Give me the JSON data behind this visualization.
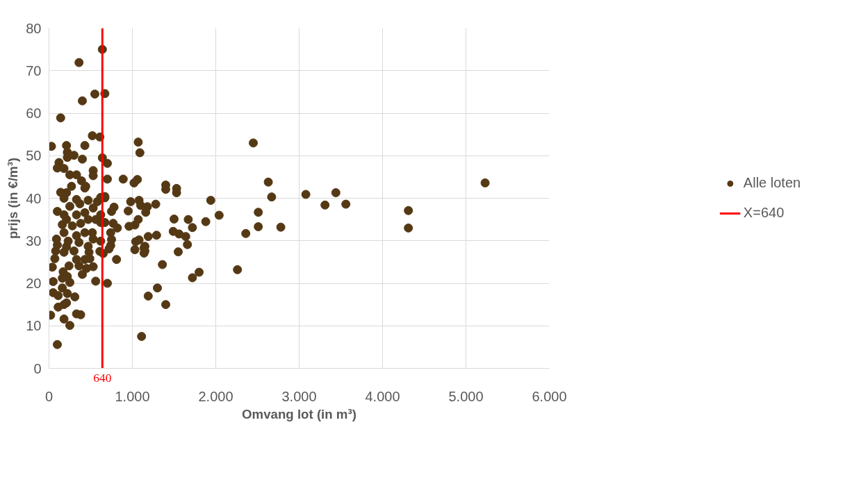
{
  "chart_data": {
    "type": "scatter",
    "xlabel": "Omvang lot (in m³)",
    "ylabel": "prijs (in €/m³)",
    "xlim": [
      0,
      6000
    ],
    "ylim": [
      0,
      80
    ],
    "xticks": [
      0,
      {
        "value": 1000,
        "label": "1.000"
      },
      {
        "value": 2000,
        "label": "2.000"
      },
      {
        "value": 3000,
        "label": "3.000"
      },
      {
        "value": 4000,
        "label": "4.000"
      },
      {
        "value": 5000,
        "label": "5.000"
      },
      {
        "value": 6000,
        "label": "6.000"
      }
    ],
    "yticks": [
      0,
      10,
      20,
      30,
      40,
      50,
      60,
      70,
      80
    ],
    "grid": true,
    "legend": "right",
    "annotations": [
      {
        "text": "640",
        "x": 640,
        "y": 0
      }
    ],
    "series": [
      {
        "name": "Alle loten",
        "color": "#553915",
        "marker": "circle",
        "x": [
          5230,
          4310,
          4310,
          3560,
          3440,
          3310,
          3080,
          2780,
          2670,
          2630,
          2450,
          2510,
          2510,
          2360,
          2260,
          2040,
          1940,
          1880,
          1800,
          1720,
          1720,
          1660,
          1670,
          1640,
          1550,
          1560,
          1530,
          1530,
          1500,
          1490,
          1400,
          1400,
          1400,
          1360,
          1300,
          1290,
          1280,
          1190,
          1180,
          1160,
          1150,
          1150,
          1110,
          1090,
          1070,
          1060,
          1020,
          980,
          1080,
          1100,
          1070,
          950,
          960,
          1030,
          1040,
          1080,
          1030,
          1140,
          1140,
          1190,
          640,
          360,
          550,
          670,
          400,
          140,
          520,
          610,
          30,
          210,
          430,
          640,
          700,
          120,
          220,
          300,
          400,
          220,
          100,
          180,
          530,
          530,
          330,
          700,
          890,
          390,
          250,
          270,
          140,
          430,
          440,
          210,
          670,
          620,
          100,
          20,
          250,
          180,
          330,
          380,
          110,
          180,
          210,
          310,
          50,
          110,
          220,
          160,
          560,
          700,
          50,
          250,
          160,
          220,
          400,
          170,
          450,
          530,
          40,
          360,
          810,
          240,
          330,
          490,
          70,
          430,
          610,
          650,
          300,
          80,
          180,
          480,
          720,
          740,
          620,
          470,
          750,
          740,
          530,
          100,
          210,
          230,
          360,
          90,
          330,
          520,
          430,
          180,
          820,
          770,
          620,
          670,
          160,
          280,
          380,
          470,
          560,
          210,
          180,
          330,
          430,
          750,
          780,
          620,
          530,
          100,
          250,
          370,
          470,
          180,
          330,
          580,
          670
        ],
        "values": [
          43.6,
          37.1,
          33.0,
          38.6,
          41.3,
          38.4,
          40.9,
          33.2,
          40.3,
          43.8,
          53.0,
          36.7,
          33.3,
          31.7,
          23.2,
          36.0,
          39.5,
          34.5,
          22.6,
          21.3,
          33.1,
          29.1,
          35.0,
          31.0,
          27.4,
          31.6,
          41.3,
          42.3,
          35.1,
          32.2,
          15.0,
          42.1,
          43.1,
          24.4,
          18.9,
          31.3,
          38.6,
          17.0,
          38.0,
          36.7,
          27.6,
          28.7,
          7.5,
          50.7,
          53.2,
          44.4,
          43.6,
          39.2,
          39.5,
          38.3,
          35.0,
          37.0,
          33.4,
          33.7,
          29.8,
          30.2,
          27.9,
          28.3,
          27.1,
          31.0,
          75.0,
          71.9,
          64.5,
          64.6,
          62.9,
          58.9,
          54.7,
          54.4,
          52.2,
          52.4,
          52.4,
          49.5,
          48.2,
          48.4,
          49.6,
          50.1,
          49.2,
          50.8,
          47.1,
          47.0,
          46.5,
          45.3,
          45.5,
          44.5,
          44.5,
          44.1,
          45.5,
          42.8,
          41.4,
          42.4,
          42.8,
          41.3,
          40.4,
          40.2,
          5.6,
          12.5,
          10.1,
          11.6,
          12.8,
          12.6,
          14.4,
          15.0,
          15.4,
          16.8,
          17.8,
          17.1,
          17.6,
          18.9,
          20.5,
          20.0,
          20.4,
          20.2,
          21.2,
          21.6,
          22.1,
          22.7,
          23.5,
          23.9,
          23.8,
          24.1,
          25.6,
          24.1,
          25.6,
          25.8,
          25.8,
          25.6,
          27.5,
          27.0,
          27.6,
          27.6,
          27.3,
          27.3,
          28.1,
          28.9,
          29.9,
          28.7,
          30.3,
          31.9,
          30.4,
          29.0,
          28.6,
          29.9,
          29.6,
          30.4,
          31.2,
          31.9,
          31.9,
          31.9,
          33.0,
          34.1,
          34.3,
          34.3,
          33.8,
          33.5,
          34.1,
          35.0,
          35.0,
          35.0,
          36.1,
          36.1,
          36.6,
          36.9,
          37.9,
          36.1,
          37.7,
          36.9,
          38.1,
          38.7,
          39.5,
          40.0,
          39.7,
          39.2,
          40.1
        ]
      },
      {
        "name": "X=640",
        "color": "#ff0000",
        "type": "line",
        "marker": "none",
        "x": [
          640,
          640
        ],
        "values": [
          0,
          80
        ]
      }
    ]
  }
}
